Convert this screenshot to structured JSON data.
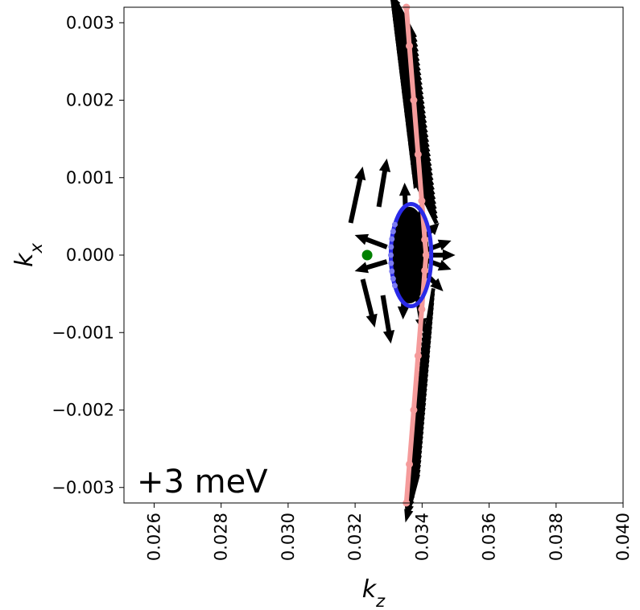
{
  "chart_data": {
    "type": "scatter",
    "xlabel": "k",
    "xlabel_sub": "z",
    "ylabel": "k",
    "ylabel_sub": "x",
    "xlim": [
      0.0251,
      0.04
    ],
    "ylim": [
      -0.0032,
      0.0032
    ],
    "xticks": [
      0.026,
      0.028,
      0.03,
      0.032,
      0.034,
      0.036,
      0.038,
      0.04
    ],
    "xtick_labels": [
      "0.026",
      "0.028",
      "0.030",
      "0.032",
      "0.034",
      "0.036",
      "0.038",
      "0.040"
    ],
    "yticks": [
      0.003,
      0.002,
      0.001,
      0.0,
      -0.001,
      -0.002,
      -0.003
    ],
    "ytick_labels": [
      "0.003",
      "0.002",
      "0.001",
      "0.000",
      "−0.001",
      "−0.002",
      "−0.003"
    ],
    "annotation": "+3 meV",
    "grid": false,
    "series": [
      {
        "kind": "curve",
        "color": "#f59b9b",
        "x": [
          0.03353,
          0.03362,
          0.03375,
          0.03388,
          0.03399,
          0.03408,
          0.03412,
          0.03408,
          0.03399,
          0.03388,
          0.03375,
          0.03362,
          0.03353
        ],
        "y": [
          0.0032,
          0.0027,
          0.002,
          0.0013,
          0.0007,
          0.0002,
          0.0,
          -0.0002,
          -0.0007,
          -0.0013,
          -0.002,
          -0.0027,
          -0.0032
        ]
      },
      {
        "kind": "ellipse",
        "color": "#2a2ae8",
        "center": [
          0.03367,
          0.0
        ],
        "radii": [
          0.00066,
          0.00066
        ]
      },
      {
        "kind": "point",
        "color": "#008000",
        "x": [
          0.03236
        ],
        "y": [
          0.0
        ]
      }
    ]
  }
}
